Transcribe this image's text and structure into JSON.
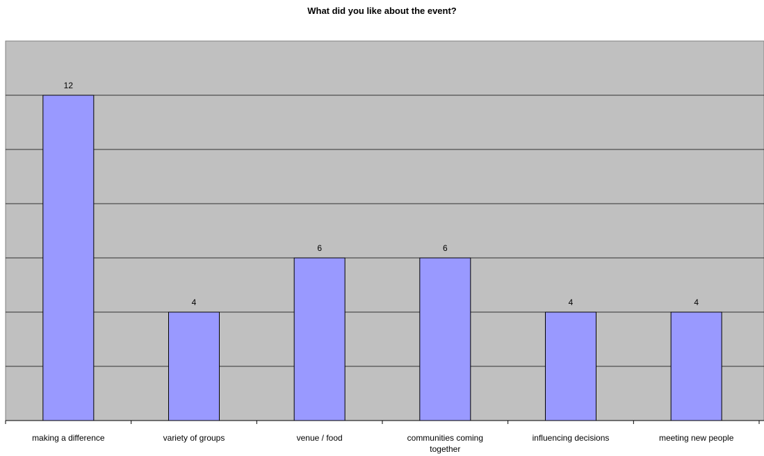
{
  "chart_data": {
    "type": "bar",
    "title": "What did you like about the event?",
    "xlabel": "",
    "ylabel": "",
    "categories": [
      "making a difference",
      "variety of groups",
      "venue / food",
      "communities coming together",
      "influencing decisions",
      "meeting new people"
    ],
    "values": [
      12,
      4,
      6,
      6,
      4,
      4
    ],
    "ylim": [
      0,
      14
    ],
    "grid": true,
    "legend": "none",
    "bar_color": "#9999ff",
    "plot_background": "#c0c0c0"
  }
}
